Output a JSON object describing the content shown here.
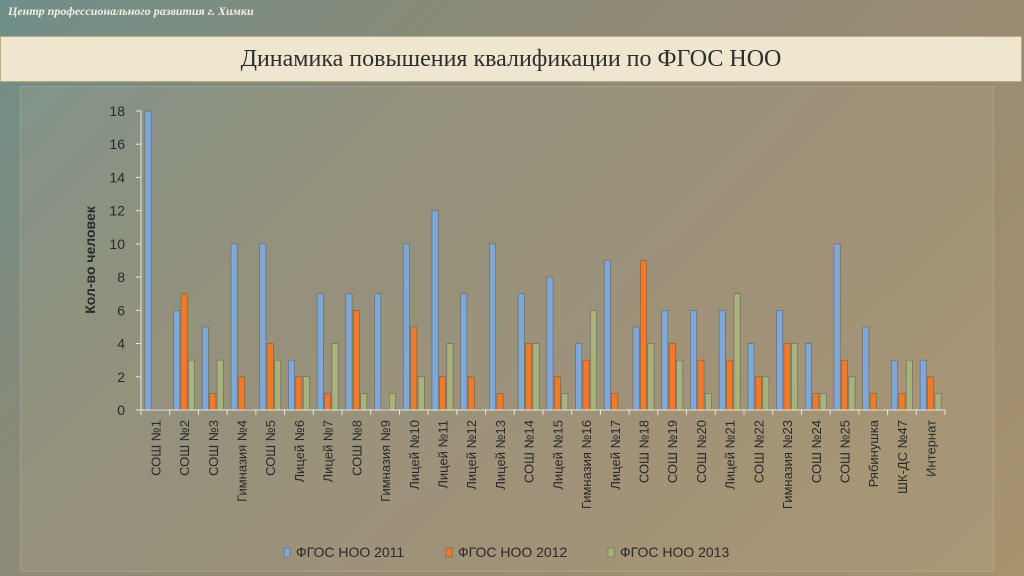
{
  "header": {
    "org_text": "Центр профессионального развития г. Химки"
  },
  "title_band": {
    "title": "Динамика повышения квалификации по ФГОС НОО"
  },
  "chart_data": {
    "type": "bar",
    "ylabel": "Кол-во человек",
    "ylim": [
      0,
      18
    ],
    "yticks": [
      0,
      2,
      4,
      6,
      8,
      10,
      12,
      14,
      16,
      18
    ],
    "grid": false,
    "legend_position": "bottom",
    "categories": [
      "СОШ №1",
      "СОШ №2",
      "СОШ №3",
      "Гимназия №4",
      "СОШ №5",
      "Лицей №6",
      "Лицей №7",
      "СОШ №8",
      "Гимназия №9",
      "Лицей №10",
      "Лицей №11",
      "Лицей №12",
      "Лицей №13",
      "СОШ №14",
      "Лицей №15",
      "Гимназия №16",
      "Лицей №17",
      "СОШ №18",
      "СОШ №19",
      "СОШ №20",
      "Лицей №21",
      "СОШ №22",
      "Гимназия №23",
      "СОШ №24",
      "СОШ №25",
      "Рябинушка",
      "ШК-ДС №47",
      "Интернат"
    ],
    "series": [
      {
        "name": "ФГОС НОО 2011",
        "color": "#7fa8d6",
        "values": [
          18,
          6,
          5,
          10,
          10,
          3,
          7,
          7,
          7,
          10,
          12,
          7,
          10,
          7,
          8,
          4,
          9,
          5,
          6,
          6,
          6,
          4,
          6,
          4,
          10,
          5,
          3,
          3
        ]
      },
      {
        "name": "ФГОС НОО 2012",
        "color": "#ef7a2a",
        "values": [
          0,
          7,
          1,
          2,
          4,
          2,
          1,
          6,
          0,
          5,
          2,
          2,
          1,
          4,
          2,
          3,
          1,
          9,
          4,
          3,
          3,
          2,
          4,
          1,
          3,
          1,
          1,
          2
        ]
      },
      {
        "name": "ФГОС НОО 2013",
        "color": "#a8b27c",
        "values": [
          0,
          3,
          3,
          0,
          3,
          2,
          4,
          1,
          1,
          2,
          4,
          0,
          0,
          4,
          1,
          6,
          0,
          4,
          3,
          1,
          7,
          2,
          4,
          1,
          2,
          0,
          3,
          1
        ]
      }
    ]
  }
}
